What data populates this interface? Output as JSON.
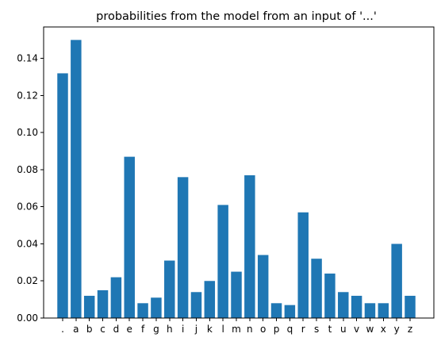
{
  "chart_data": {
    "type": "bar",
    "title": "probabilities from the model from an input of '...'",
    "xlabel": "",
    "ylabel": "",
    "categories": [
      ".",
      "a",
      "b",
      "c",
      "d",
      "e",
      "f",
      "g",
      "h",
      "i",
      "j",
      "k",
      "l",
      "m",
      "n",
      "o",
      "p",
      "q",
      "r",
      "s",
      "t",
      "u",
      "v",
      "w",
      "x",
      "y",
      "z"
    ],
    "values": [
      0.132,
      0.15,
      0.012,
      0.015,
      0.022,
      0.087,
      0.008,
      0.011,
      0.031,
      0.076,
      0.014,
      0.02,
      0.061,
      0.025,
      0.077,
      0.034,
      0.008,
      0.007,
      0.057,
      0.032,
      0.024,
      0.014,
      0.012,
      0.008,
      0.008,
      0.04,
      0.012
    ],
    "ylim": [
      0,
      0.157
    ],
    "yticks": [
      0.0,
      0.02,
      0.04,
      0.06,
      0.08,
      0.1,
      0.12,
      0.14
    ],
    "ytick_labels": [
      "0.00",
      "0.02",
      "0.04",
      "0.06",
      "0.08",
      "0.10",
      "0.12",
      "0.14"
    ],
    "bar_color": "#1f77b4",
    "grid": false,
    "legend": "none"
  }
}
